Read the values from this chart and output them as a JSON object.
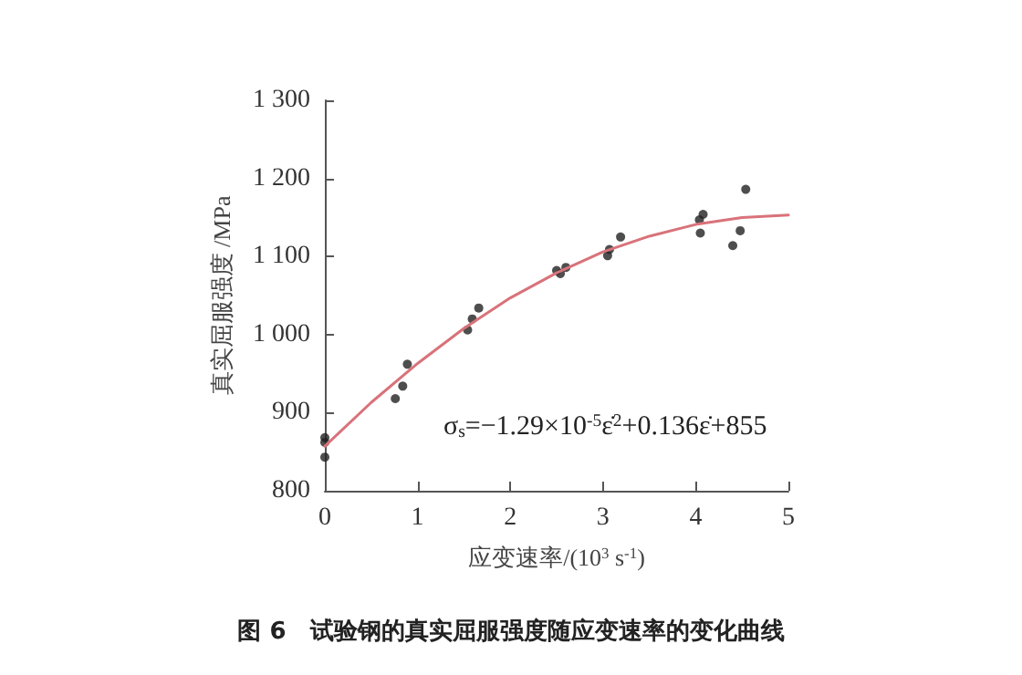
{
  "chart_data": {
    "type": "scatter",
    "title": "图 6　试验钢的真实屈服强度随应变速率的变化曲线",
    "xlabel": "应变速率/(10$^{3}$ s$^{-1}$)",
    "ylabel": "真实屈服强度 /MPa",
    "xlim": [
      0,
      5
    ],
    "xticks": [
      0,
      1,
      2,
      3,
      4,
      5
    ],
    "ylim": [
      800,
      1300
    ],
    "yticks": [
      800,
      900,
      {
        "value": 1000,
        "label": "1 000"
      },
      {
        "value": 1100,
        "label": "1 100"
      },
      {
        "value": 1200,
        "label": "1 200"
      },
      {
        "value": 1300,
        "label": "1 300"
      }
    ],
    "grid": false,
    "marker": "circle",
    "annotations": [
      "σ$_{s}$=−1.29×10$^{-5}$ε̇$^{2}$+0.136ε̇+855"
    ],
    "series": [
      {
        "color": "#222222",
        "x": [
          0,
          0,
          0,
          0.76,
          0.84,
          0.89,
          1.54,
          1.59,
          1.66,
          2.5,
          2.54,
          2.6,
          3.05,
          3.07,
          3.19,
          4.05,
          4.04,
          4.08,
          4.4,
          4.48,
          4.54
        ],
        "values": [
          868,
          862,
          843,
          918,
          934,
          962,
          1006,
          1020,
          1034,
          1082,
          1078,
          1086,
          1101,
          1109,
          1125,
          1130,
          1147,
          1154,
          1114,
          1133,
          1186
        ]
      },
      {
        "type": "line",
        "color": "#d9727a",
        "marker": "none",
        "line_style": "solid",
        "x": [
          0,
          0.5,
          1,
          1.5,
          2,
          2.5,
          3,
          3.5,
          4,
          4.5,
          5
        ],
        "values": [
          857,
          913,
          963,
          1008,
          1047,
          1079,
          1106,
          1126,
          1141,
          1150,
          1153
        ]
      }
    ]
  }
}
